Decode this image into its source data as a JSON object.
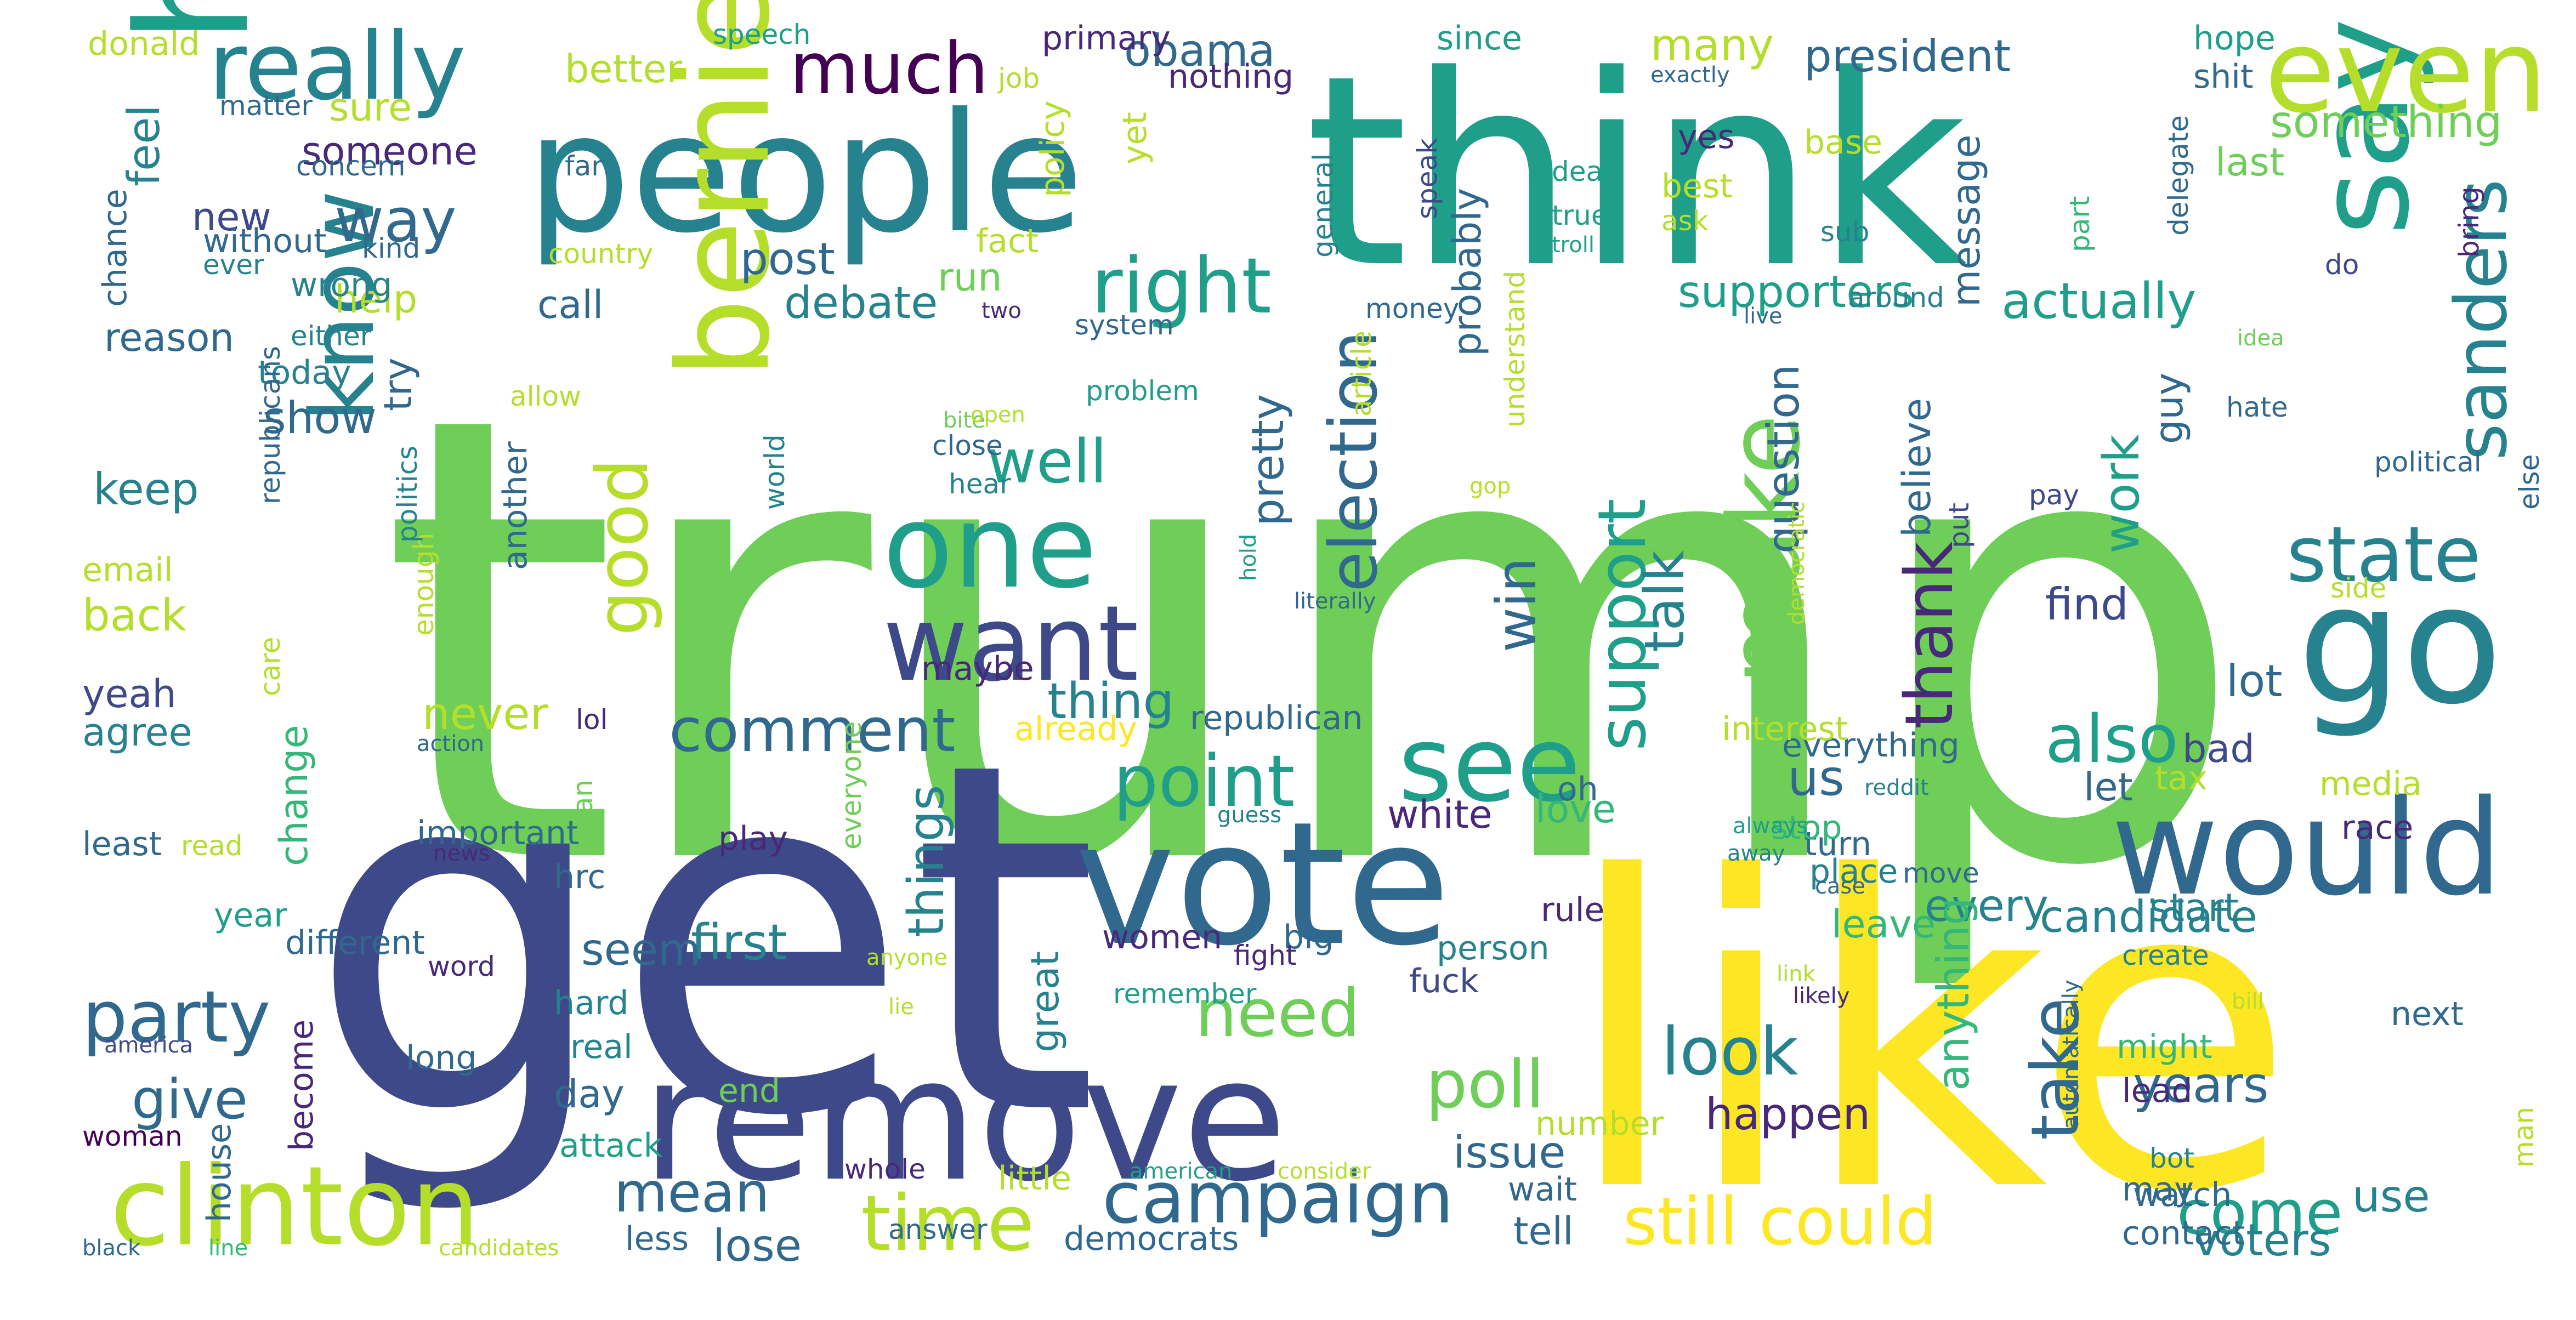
{
  "palette": [
    "#440154",
    "#482878",
    "#3e4989",
    "#31688e",
    "#26828e",
    "#1f9e89",
    "#35b779",
    "#6ece58",
    "#b5de2b",
    "#fde725"
  ],
  "words": [
    "trump",
    "get",
    "like",
    "think",
    "people",
    "say",
    "hillary",
    "go",
    "vote",
    "remove",
    "would",
    "even",
    "bernie",
    "one",
    "want",
    "clinton",
    "really",
    "make",
    "see",
    "know",
    "much",
    "right",
    "well",
    "way",
    "party",
    "state",
    "time",
    "campaign",
    "sanders",
    "also",
    "election",
    "still could",
    "point",
    "comment",
    "need",
    "poll",
    "take",
    "look",
    "come",
    "give",
    "mean",
    "good",
    "support",
    "thank",
    "talk",
    "win",
    "obama",
    "president",
    "something",
    "last",
    "better",
    "sure",
    "someone",
    "concern",
    "far",
    "new",
    "post",
    "call",
    "debate",
    "actually",
    "supporters",
    "message",
    "run",
    "help",
    "reason",
    "either",
    "today",
    "show",
    "keep",
    "try",
    "pretty",
    "probably",
    "question",
    "work",
    "guy",
    "believe",
    "thing",
    "things",
    "first",
    "seem",
    "great",
    "every",
    "candidate",
    "anything",
    "white",
    "love",
    "us",
    "let",
    "lot",
    "find",
    "bad",
    "years",
    "lose",
    "day",
    "tell",
    "issue",
    "wait",
    "happen",
    "voters",
    "use",
    "watch",
    "lead",
    "might",
    "next",
    "contact",
    "may",
    "democrats",
    "answer",
    "less",
    "back",
    "email",
    "agree",
    "yeah",
    "never",
    "lol",
    "republican",
    "already",
    "maybe",
    "change",
    "women",
    "big",
    "fight",
    "person",
    "fuck",
    "rule",
    "leave",
    "start",
    "place",
    "case",
    "hard",
    "real",
    "house",
    "become",
    "long",
    "woman",
    "black",
    "line",
    "candidates",
    "america",
    "attack",
    "end",
    "number",
    "whole",
    "little",
    "american",
    "consider",
    "bot",
    "man",
    "automatically",
    "donald",
    "speech",
    "primary",
    "job",
    "nothing",
    "since",
    "many",
    "exactly",
    "hope",
    "shit",
    "base",
    "yet",
    "policy",
    "matter",
    "feel",
    "chance",
    "without",
    "ever",
    "kind",
    "fact",
    "country",
    "general",
    "speak",
    "true",
    "best",
    "ask",
    "yes",
    "deal",
    "troll",
    "sub",
    "part",
    "delegate",
    "bring",
    "do",
    "money",
    "around",
    "two",
    "system",
    "live",
    "idea",
    "hate",
    "else",
    "political",
    "pay",
    "put",
    "side",
    "democratic",
    "literally",
    "hold",
    "gop",
    "bite",
    "open",
    "problem",
    "close",
    "hear",
    "world",
    "article",
    "understand",
    "another",
    "enough",
    "politics",
    "republicans",
    "care",
    "action",
    "important",
    "news",
    "hrc",
    "play",
    "plan",
    "everyone",
    "anyone",
    "lie",
    "remember",
    "word",
    "different",
    "year",
    "least",
    "read",
    "guess",
    "everything",
    "interest",
    "oh",
    "tax",
    "media",
    "race",
    "turn",
    "stop",
    "always",
    "reddit",
    "away",
    "move",
    "create",
    "link",
    "likely",
    "bill",
    "allow",
    "wrong",
    "✉",
    "yeah"
  ]
}
